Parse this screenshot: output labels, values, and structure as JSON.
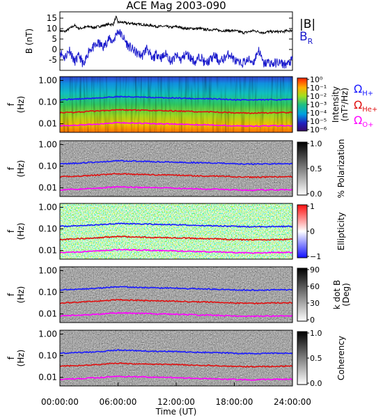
{
  "figure": {
    "title": "ACE Mag 2003-090",
    "time_axis_label": "Time (UT)",
    "time_ticks": [
      "00:00:00",
      "06:00:00",
      "12:00:00",
      "18:00:00",
      "24:00:00"
    ]
  },
  "legend": {
    "top": [
      {
        "label": "|B|",
        "color": "#000000"
      },
      {
        "label": "B",
        "sub": "R",
        "color": "#1a1acc"
      }
    ],
    "gyro": [
      {
        "label": "Ω",
        "sub": "H+",
        "color": "#1a1aff"
      },
      {
        "label": "Ω",
        "sub": "He+",
        "color": "#e01010"
      },
      {
        "label": "Ω",
        "sub": "O+",
        "color": "#ff00ff"
      }
    ]
  },
  "freq_panel": {
    "ylabel_top": "f",
    "ylabel_bottom": "(Hz)",
    "yticks": [
      "1.00",
      "0.10",
      "0.01"
    ]
  },
  "panels": [
    {
      "name": "intensity",
      "cbar_title": "Intensity",
      "cbar_units": "(nT²/Hz)",
      "cbar_ticks": [
        "10⁰",
        "10⁻¹",
        "10⁻²",
        "10⁻³",
        "10⁻⁴",
        "10⁻⁵",
        "10⁻⁶"
      ]
    },
    {
      "name": "polarization",
      "cbar_title": "% Polarization",
      "cbar_units": "",
      "cbar_ticks": [
        "1.0",
        "0.5",
        "0.0"
      ]
    },
    {
      "name": "ellipticity",
      "cbar_title": "Ellipticity",
      "cbar_units": "",
      "cbar_ticks": [
        "1",
        "0",
        "−1"
      ]
    },
    {
      "name": "kdotb",
      "cbar_title": "k dot B",
      "cbar_units": "(Deg)",
      "cbar_ticks": [
        "90",
        "60",
        "30",
        "0"
      ]
    },
    {
      "name": "coherency",
      "cbar_title": "Coherency",
      "cbar_units": "",
      "cbar_ticks": [
        "1.0",
        "0.5",
        "0.0"
      ]
    }
  ],
  "chart_data": [
    {
      "type": "line",
      "title": "ACE Mag 2003-090",
      "ylabel": "B (nT)",
      "yticks": [
        15,
        10,
        5,
        0,
        -5
      ],
      "ylim": [
        -10,
        18
      ],
      "xlim_hours": [
        0,
        24
      ],
      "series": [
        {
          "name": "|B|",
          "color": "#000000",
          "x_hours": [
            0,
            0.5,
            1,
            1.5,
            2,
            2.5,
            3,
            3.5,
            4,
            4.5,
            5,
            5.5,
            5.8,
            6,
            6.5,
            7,
            7.5,
            8,
            8.5,
            9,
            9.5,
            10,
            10.5,
            11,
            11.5,
            12,
            12.5,
            13,
            13.5,
            14,
            14.5,
            15,
            15.5,
            16,
            16.5,
            17,
            17.5,
            18,
            18.5,
            19,
            19.5,
            20,
            20.5,
            21,
            21.5,
            22,
            22.5,
            23,
            23.5,
            24
          ],
          "values": [
            9,
            8.5,
            10,
            11.5,
            10,
            10.5,
            11,
            10.5,
            11,
            11.5,
            12,
            12,
            15.5,
            13,
            13,
            12.5,
            12.5,
            12,
            12,
            11.5,
            11.5,
            11,
            11,
            11,
            10.5,
            11,
            10.5,
            10,
            10,
            10,
            10,
            9.5,
            9.5,
            9.5,
            9,
            9,
            9,
            9,
            8.5,
            8,
            8.5,
            9,
            8.5,
            8,
            8.5,
            8.5,
            8.5,
            8.5,
            9,
            9
          ]
        },
        {
          "name": "B_R",
          "color": "#1a1acc",
          "x_hours": [
            0,
            0.5,
            1,
            1.5,
            2,
            2.5,
            3,
            3.5,
            4,
            4.5,
            5,
            5.5,
            6,
            6.5,
            7,
            7.5,
            8,
            8.5,
            9,
            9.5,
            10,
            10.5,
            11,
            11.5,
            12,
            12.5,
            13,
            13.5,
            14,
            14.5,
            15,
            15.5,
            16,
            16.5,
            17,
            17.5,
            18,
            18.5,
            19,
            19.5,
            20,
            20.5,
            21,
            21.5,
            22,
            22.5,
            23,
            23.5,
            24
          ],
          "values": [
            -1,
            -4,
            0,
            -6,
            -3,
            -8,
            0,
            1,
            3,
            1,
            5,
            4,
            9,
            6,
            2,
            0,
            -2,
            -3,
            1,
            -5,
            -2,
            -4,
            -2,
            -6,
            -3,
            -5,
            -2,
            -4,
            -6,
            -3,
            -7,
            -5,
            -3,
            -6,
            -4,
            -2,
            -5,
            -7,
            -6,
            -5,
            -6,
            0,
            -7,
            -6,
            -7,
            -6,
            -7,
            -7,
            -5
          ]
        }
      ]
    },
    {
      "type": "line",
      "title": "",
      "ylabel": "f (Hz)",
      "yscale": "log",
      "ylim": [
        0.004,
        1.5
      ],
      "xlim_hours": [
        0,
        24
      ],
      "series": [
        {
          "name": "Ω_H+",
          "color": "#1a1aff",
          "x_hours": [
            0,
            2,
            4,
            6,
            8,
            10,
            12,
            14,
            16,
            18,
            20,
            22,
            24
          ],
          "values": [
            0.13,
            0.14,
            0.155,
            0.18,
            0.17,
            0.16,
            0.155,
            0.145,
            0.14,
            0.13,
            0.125,
            0.13,
            0.13
          ]
        },
        {
          "name": "Ω_He+",
          "color": "#e01010",
          "x_hours": [
            0,
            2,
            4,
            6,
            8,
            10,
            12,
            14,
            16,
            18,
            20,
            22,
            24
          ],
          "values": [
            0.032,
            0.035,
            0.039,
            0.045,
            0.042,
            0.04,
            0.039,
            0.036,
            0.035,
            0.032,
            0.031,
            0.032,
            0.033
          ]
        },
        {
          "name": "Ω_O+",
          "color": "#ff00ff",
          "x_hours": [
            0,
            2,
            4,
            6,
            8,
            10,
            12,
            14,
            16,
            18,
            20,
            22,
            24
          ],
          "values": [
            0.0081,
            0.0087,
            0.0097,
            0.0112,
            0.0106,
            0.01,
            0.0097,
            0.009,
            0.0087,
            0.008,
            0.0078,
            0.0081,
            0.0082
          ]
        }
      ]
    }
  ]
}
